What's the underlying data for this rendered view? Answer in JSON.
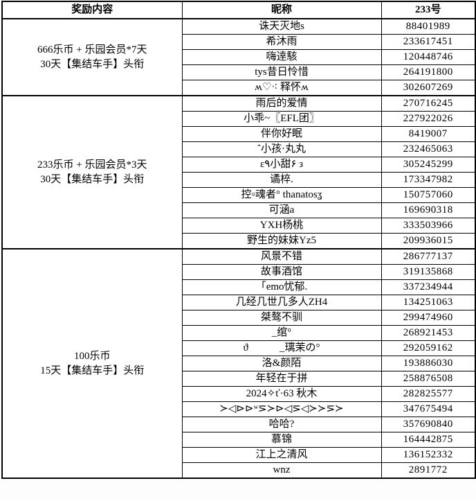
{
  "table": {
    "headers": [
      "奖励内容",
      "昵称",
      "233号"
    ],
    "groups": [
      {
        "reward_lines": [
          "666乐币 + 乐园会员*7天",
          "30天【集结车手】头衔"
        ],
        "rows": [
          {
            "nickname": "诛天灭地s",
            "number": "88401989"
          },
          {
            "nickname": "希沐雨",
            "number": "233617451"
          },
          {
            "nickname": "嗨逹駭",
            "number": "120448746"
          },
          {
            "nickname": "tys昔日怜惜",
            "number": "264191800"
          },
          {
            "nickname": "ʍ♡⁖ 释怀ʍ",
            "number": "302607269"
          }
        ]
      },
      {
        "reward_lines": [
          "233乐币 + 乐园会员*3天",
          "30天【集结车手】头衔"
        ],
        "rows": [
          {
            "nickname": "雨后的爱情",
            "number": "270716245"
          },
          {
            "nickname": "小乖~〖EFL团〗",
            "number": "227922026"
          },
          {
            "nickname": "伴你好眠",
            "number": "8419007"
          },
          {
            "nickname": "ˆ小孩·丸丸",
            "number": "232465063"
          },
          {
            "nickname": "ε٩小甜۶ з",
            "number": "305245299"
          },
          {
            "nickname": "谲椊.",
            "number": "173347982"
          },
          {
            "nickname": "控▫魂者° thanatosʓ",
            "number": "150757060"
          },
          {
            "nickname": "可涵a",
            "number": "169690318"
          },
          {
            "nickname": "YXH杨桃",
            "number": "333503966"
          },
          {
            "nickname": "野生的妹妹Yz5",
            "number": "209936015"
          }
        ]
      },
      {
        "reward_lines": [
          "100乐币",
          "15天【集结车手】头衔"
        ],
        "rows": [
          {
            "nickname": "风景不错",
            "number": "286777137"
          },
          {
            "nickname": "故事酒馆",
            "number": "319135868"
          },
          {
            "nickname": "「emo忧郁.",
            "number": "337234944"
          },
          {
            "nickname": "几经几世几多人ZH4",
            "number": "134251063"
          },
          {
            "nickname": "桀骜不驯",
            "number": "299474960"
          },
          {
            "nickname": "_绾°",
            "number": "268921453"
          },
          {
            "nickname": "ϑ　　　_璃茉の°",
            "number": "292059162"
          },
          {
            "nickname": "洛&颜陌",
            "number": "193886030"
          },
          {
            "nickname": "年轻在于拼",
            "number": "258876508"
          },
          {
            "nickname": "2024✧ť·63 秋木",
            "number": "282825577"
          },
          {
            "nickname": "≻◁⊳⊳ʷ⋝≻⊳◁⋝◁≻≻⋝≻",
            "number": "347675494"
          },
          {
            "nickname": "哈哈?",
            "number": "357690840"
          },
          {
            "nickname": "慕锦",
            "number": "164442875"
          },
          {
            "nickname": "江上之清风",
            "number": "136152332"
          },
          {
            "nickname": "wnz",
            "number": "2891772"
          }
        ]
      }
    ]
  },
  "colors": {
    "border": "#000000",
    "background": "#ffffff",
    "text": "#000000"
  }
}
